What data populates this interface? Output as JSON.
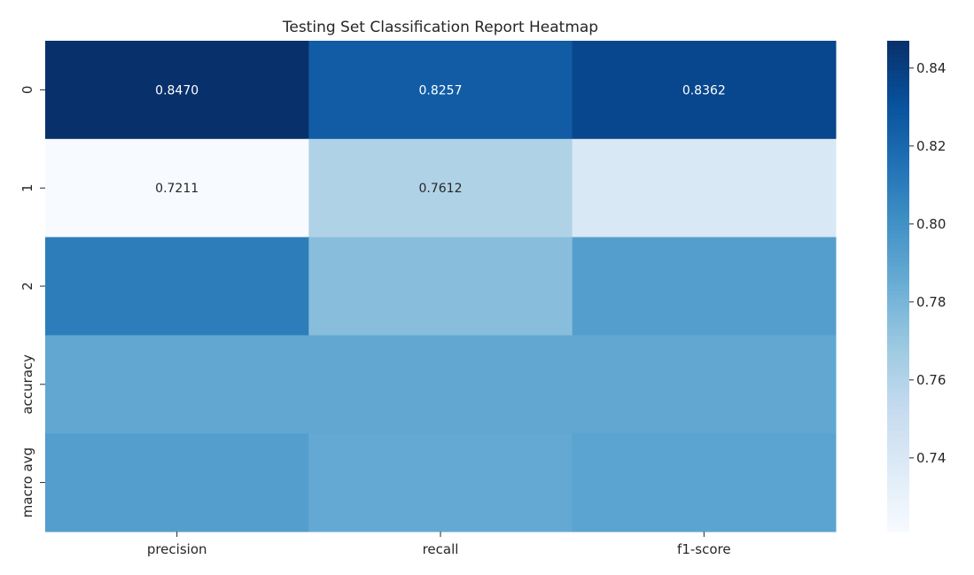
{
  "chart_data": {
    "type": "heatmap",
    "title": "Testing Set Classification Report Heatmap",
    "columns": [
      "precision",
      "recall",
      "f1-score"
    ],
    "rows": [
      "0",
      "1",
      "2",
      "accuracy",
      "macro avg"
    ],
    "values": [
      [
        0.847,
        0.8257,
        0.8362
      ],
      [
        0.7211,
        0.7612,
        0.74
      ],
      [
        0.81,
        0.775,
        0.793
      ],
      [
        0.788,
        0.788,
        0.788
      ],
      [
        0.793,
        0.787,
        0.79
      ]
    ],
    "annotations": [
      [
        "0.8470",
        "0.8257",
        "0.8362"
      ],
      [
        "0.7211",
        "0.7612",
        ""
      ],
      [
        "",
        "",
        ""
      ],
      [
        "",
        "",
        ""
      ],
      [
        "",
        "",
        ""
      ]
    ],
    "colormap": "Blues",
    "vmin": 0.7211,
    "vmax": 0.847,
    "colorbar_ticks": [
      "0.74",
      "0.76",
      "0.78",
      "0.80",
      "0.82",
      "0.84"
    ]
  }
}
